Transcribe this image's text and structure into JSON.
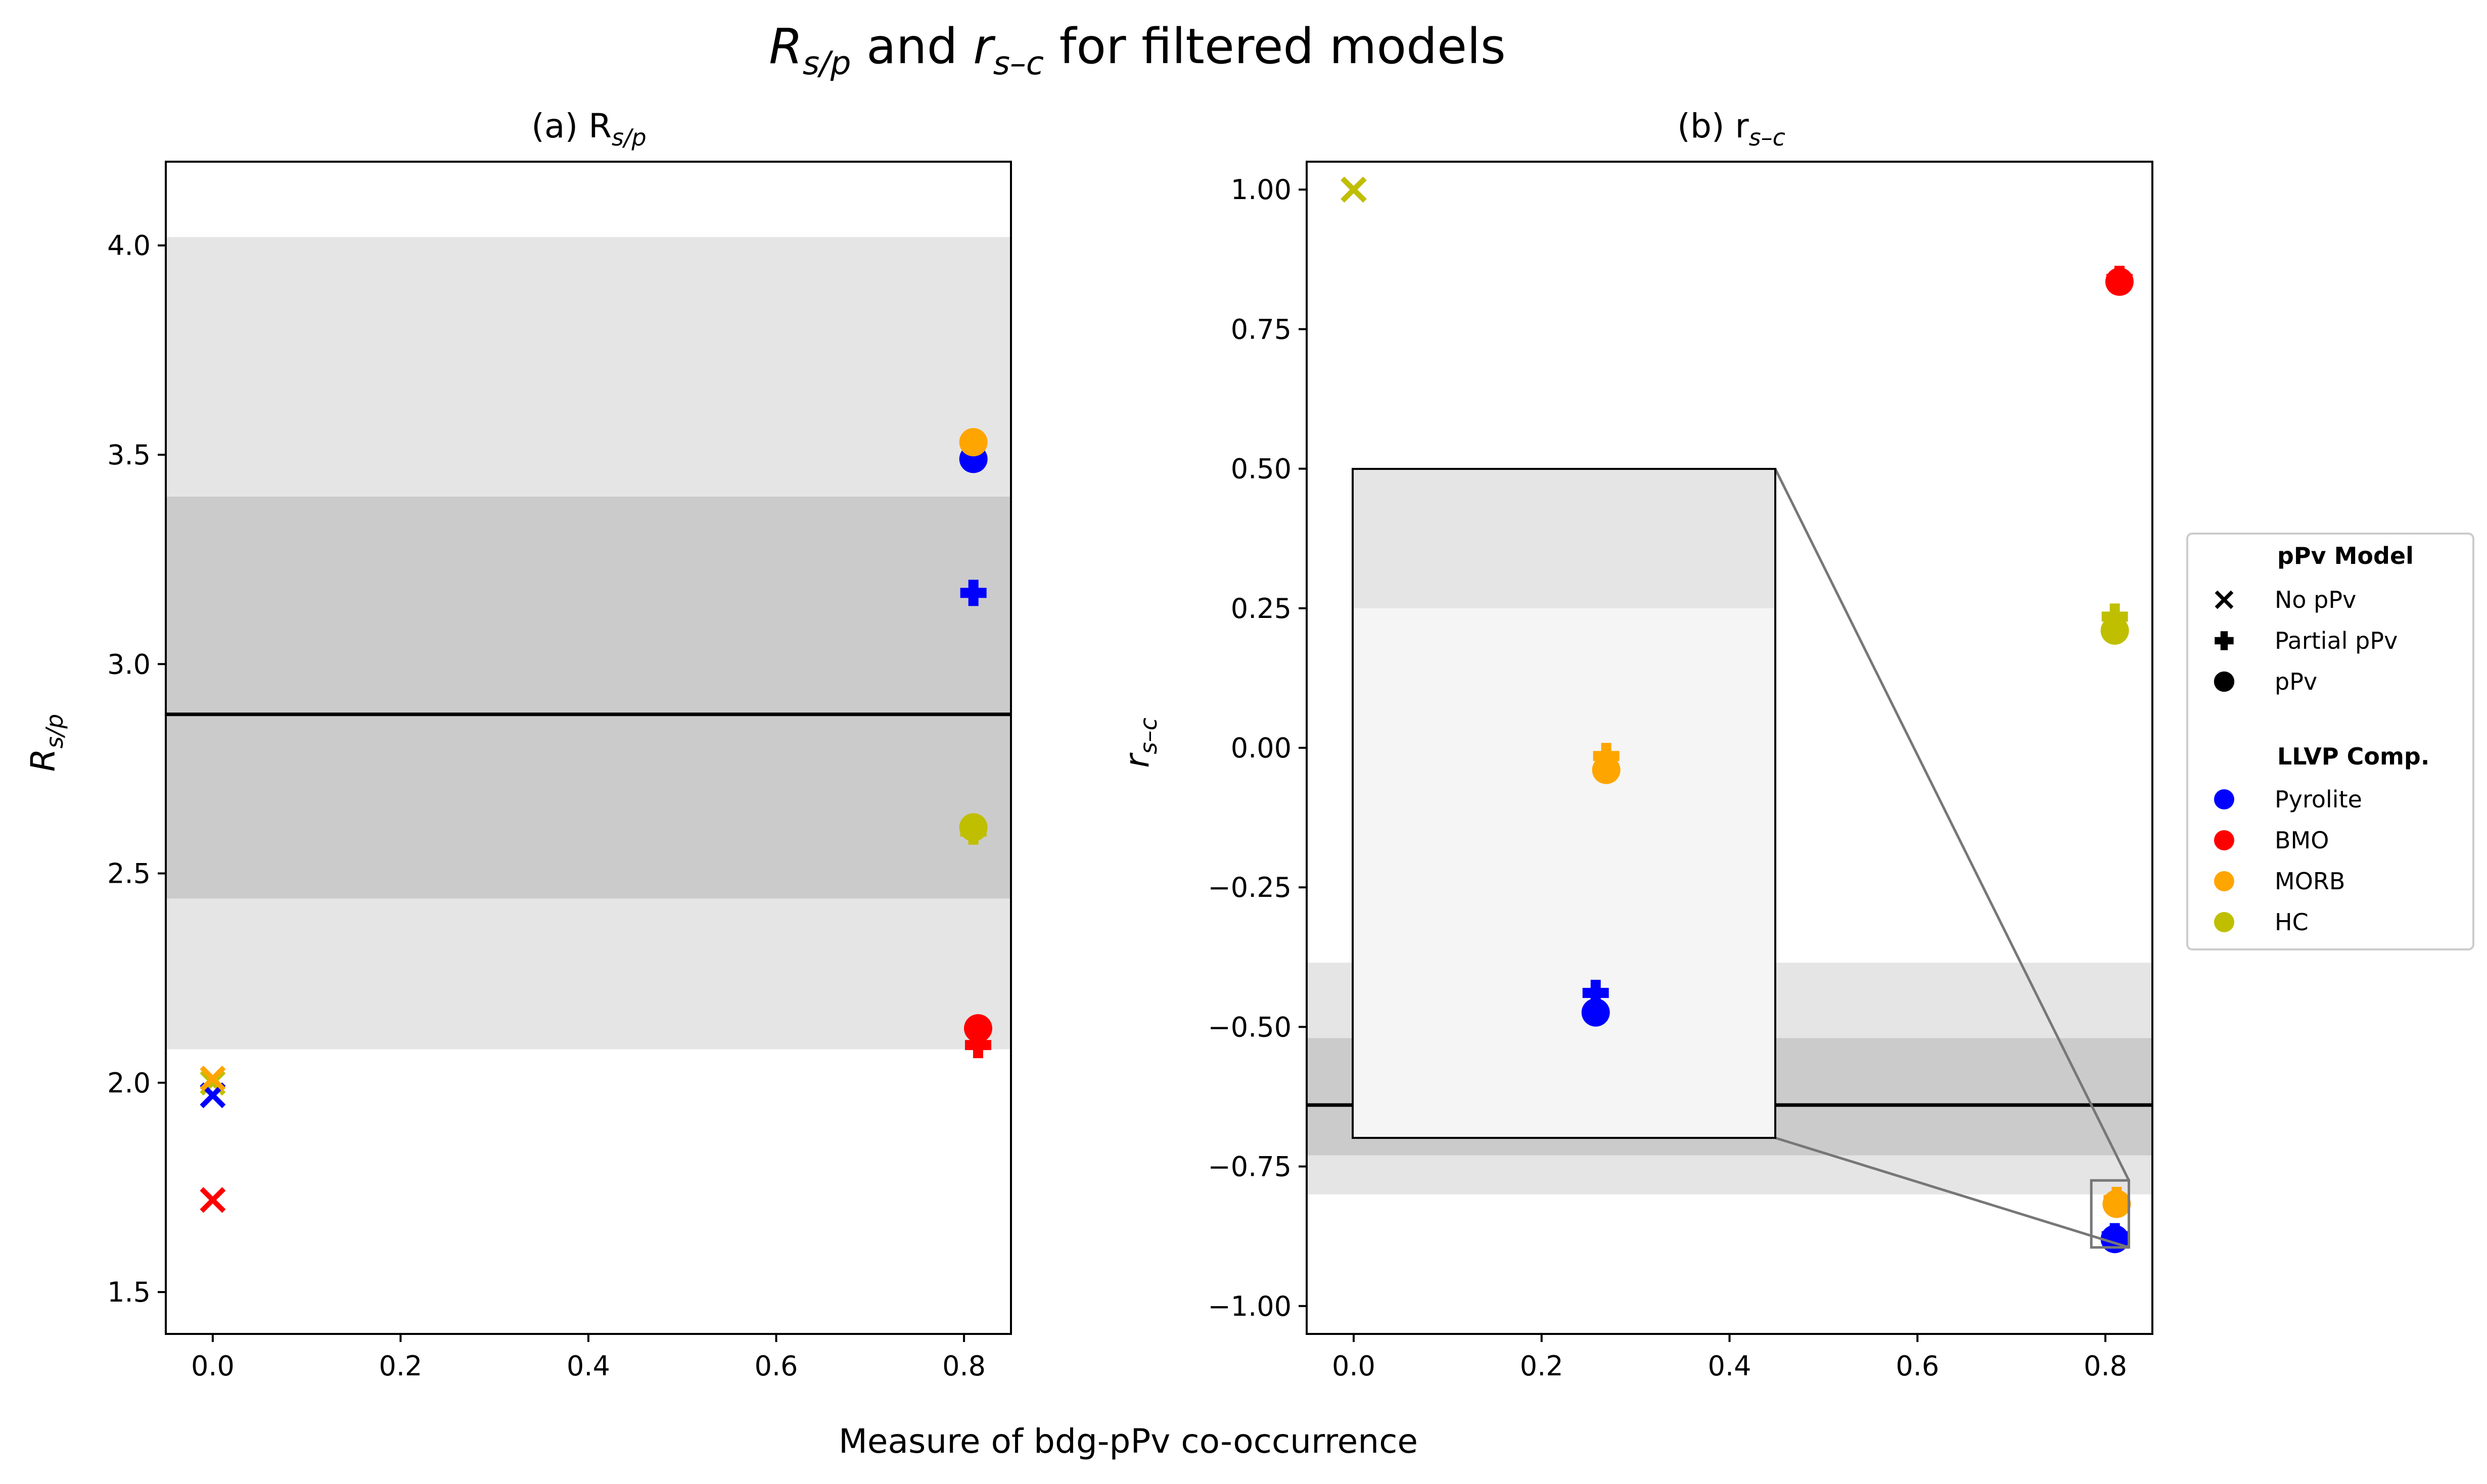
{
  "figure": {
    "suptitle_main": "R",
    "suptitle_sub1": "s/p",
    "suptitle_mid": " and ",
    "suptitle_main2": "r",
    "suptitle_sub2": "s–c",
    "suptitle_tail": " for filtered models",
    "shared_xlabel": "Measure of bdg-pPv co-occurrence"
  },
  "legend": {
    "model_title": "pPv Model",
    "model_entries": [
      {
        "label": "No pPv",
        "marker": "x"
      },
      {
        "label": "Partial pPv",
        "marker": "plus"
      },
      {
        "label": "pPv",
        "marker": "circle"
      }
    ],
    "comp_title": "LLVP Comp.",
    "comp_entries": [
      {
        "label": "Pyrolite",
        "color": "#0000ff"
      },
      {
        "label": "BMO",
        "color": "#ff0000"
      },
      {
        "label": "MORB",
        "color": "#ffa500"
      },
      {
        "label": "HC",
        "color": "#bfbf00"
      }
    ]
  },
  "chart_data": [
    {
      "type": "scatter",
      "title_prefix": "(a) R",
      "title_sub": "s/p",
      "ylabel_main": "R",
      "ylabel_sub": "s/p",
      "xlim": [
        -0.05,
        0.85
      ],
      "ylim": [
        1.4,
        4.2
      ],
      "xticks": [
        "0.0",
        "0.2",
        "0.4",
        "0.6",
        "0.8"
      ],
      "yticks": [
        "1.5",
        "2.0",
        "2.5",
        "3.0",
        "3.5",
        "4.0"
      ],
      "bands": [
        {
          "y0": 2.08,
          "y1": 4.02,
          "color": "#e5e5e5"
        },
        {
          "y0": 2.44,
          "y1": 3.4,
          "color": "#cbcbcb"
        }
      ],
      "hline": 2.88,
      "points": [
        {
          "x": 0.0,
          "y": 2.0,
          "marker": "x",
          "comp": "HC"
        },
        {
          "x": 0.0,
          "y": 1.97,
          "marker": "x",
          "comp": "Pyrolite"
        },
        {
          "x": 0.0,
          "y": 2.01,
          "marker": "x",
          "comp": "MORB"
        },
        {
          "x": 0.0,
          "y": 1.72,
          "marker": "x",
          "comp": "BMO"
        },
        {
          "x": 0.81,
          "y": 3.49,
          "marker": "circle",
          "comp": "Pyrolite"
        },
        {
          "x": 0.81,
          "y": 3.17,
          "marker": "plus",
          "comp": "Pyrolite"
        },
        {
          "x": 0.81,
          "y": 3.53,
          "marker": "plus",
          "comp": "MORB"
        },
        {
          "x": 0.81,
          "y": 3.53,
          "marker": "circle",
          "comp": "MORB"
        },
        {
          "x": 0.81,
          "y": 2.6,
          "marker": "plus",
          "comp": "HC"
        },
        {
          "x": 0.81,
          "y": 2.61,
          "marker": "circle",
          "comp": "HC"
        },
        {
          "x": 0.815,
          "y": 2.09,
          "marker": "plus",
          "comp": "BMO"
        },
        {
          "x": 0.815,
          "y": 2.13,
          "marker": "circle",
          "comp": "BMO"
        }
      ]
    },
    {
      "type": "scatter",
      "title_prefix": "(b) r",
      "title_sub": "s–c",
      "ylabel_main": "r",
      "ylabel_sub": "s–c",
      "xlim": [
        -0.05,
        0.85
      ],
      "ylim": [
        -1.05,
        1.05
      ],
      "xticks": [
        "0.0",
        "0.2",
        "0.4",
        "0.6",
        "0.8"
      ],
      "yticks": [
        "−1.00",
        "−0.75",
        "−0.50",
        "−0.25",
        "0.00",
        "0.25",
        "0.50",
        "0.75",
        "1.00"
      ],
      "bands": [
        {
          "y0": -0.8,
          "y1": -0.385,
          "color": "#e5e5e5"
        },
        {
          "y0": -0.73,
          "y1": -0.52,
          "color": "#cbcbcb"
        }
      ],
      "hline": -0.64,
      "points": [
        {
          "x": 0.0,
          "y": 1.0,
          "marker": "x",
          "comp": "Pyrolite"
        },
        {
          "x": 0.0,
          "y": 1.0,
          "marker": "x",
          "comp": "BMO"
        },
        {
          "x": 0.0,
          "y": 1.0,
          "marker": "x",
          "comp": "MORB"
        },
        {
          "x": 0.0,
          "y": 1.0,
          "marker": "x",
          "comp": "HC"
        },
        {
          "x": 0.815,
          "y": 0.84,
          "marker": "plus",
          "comp": "BMO"
        },
        {
          "x": 0.815,
          "y": 0.835,
          "marker": "circle",
          "comp": "BMO"
        },
        {
          "x": 0.81,
          "y": 0.235,
          "marker": "plus",
          "comp": "HC"
        },
        {
          "x": 0.81,
          "y": 0.21,
          "marker": "circle",
          "comp": "HC"
        },
        {
          "x": 0.81,
          "y": -0.875,
          "marker": "plus",
          "comp": "Pyrolite"
        },
        {
          "x": 0.81,
          "y": -0.88,
          "marker": "circle",
          "comp": "Pyrolite"
        },
        {
          "x": 0.812,
          "y": -0.81,
          "marker": "plus",
          "comp": "MORB"
        },
        {
          "x": 0.812,
          "y": -0.817,
          "marker": "circle",
          "comp": "MORB"
        }
      ],
      "inset": {
        "zoom_xlim": [
          0.785,
          0.825
        ],
        "zoom_ylim": [
          -0.895,
          -0.775
        ],
        "band_edge": -0.8,
        "points": [
          {
            "x": 0.809,
            "y": -0.8265,
            "marker": "plus",
            "comp": "MORB"
          },
          {
            "x": 0.809,
            "y": -0.829,
            "marker": "circle",
            "comp": "MORB"
          },
          {
            "x": 0.808,
            "y": -0.869,
            "marker": "plus",
            "comp": "Pyrolite"
          },
          {
            "x": 0.808,
            "y": -0.8725,
            "marker": "circle",
            "comp": "Pyrolite"
          }
        ]
      }
    }
  ]
}
